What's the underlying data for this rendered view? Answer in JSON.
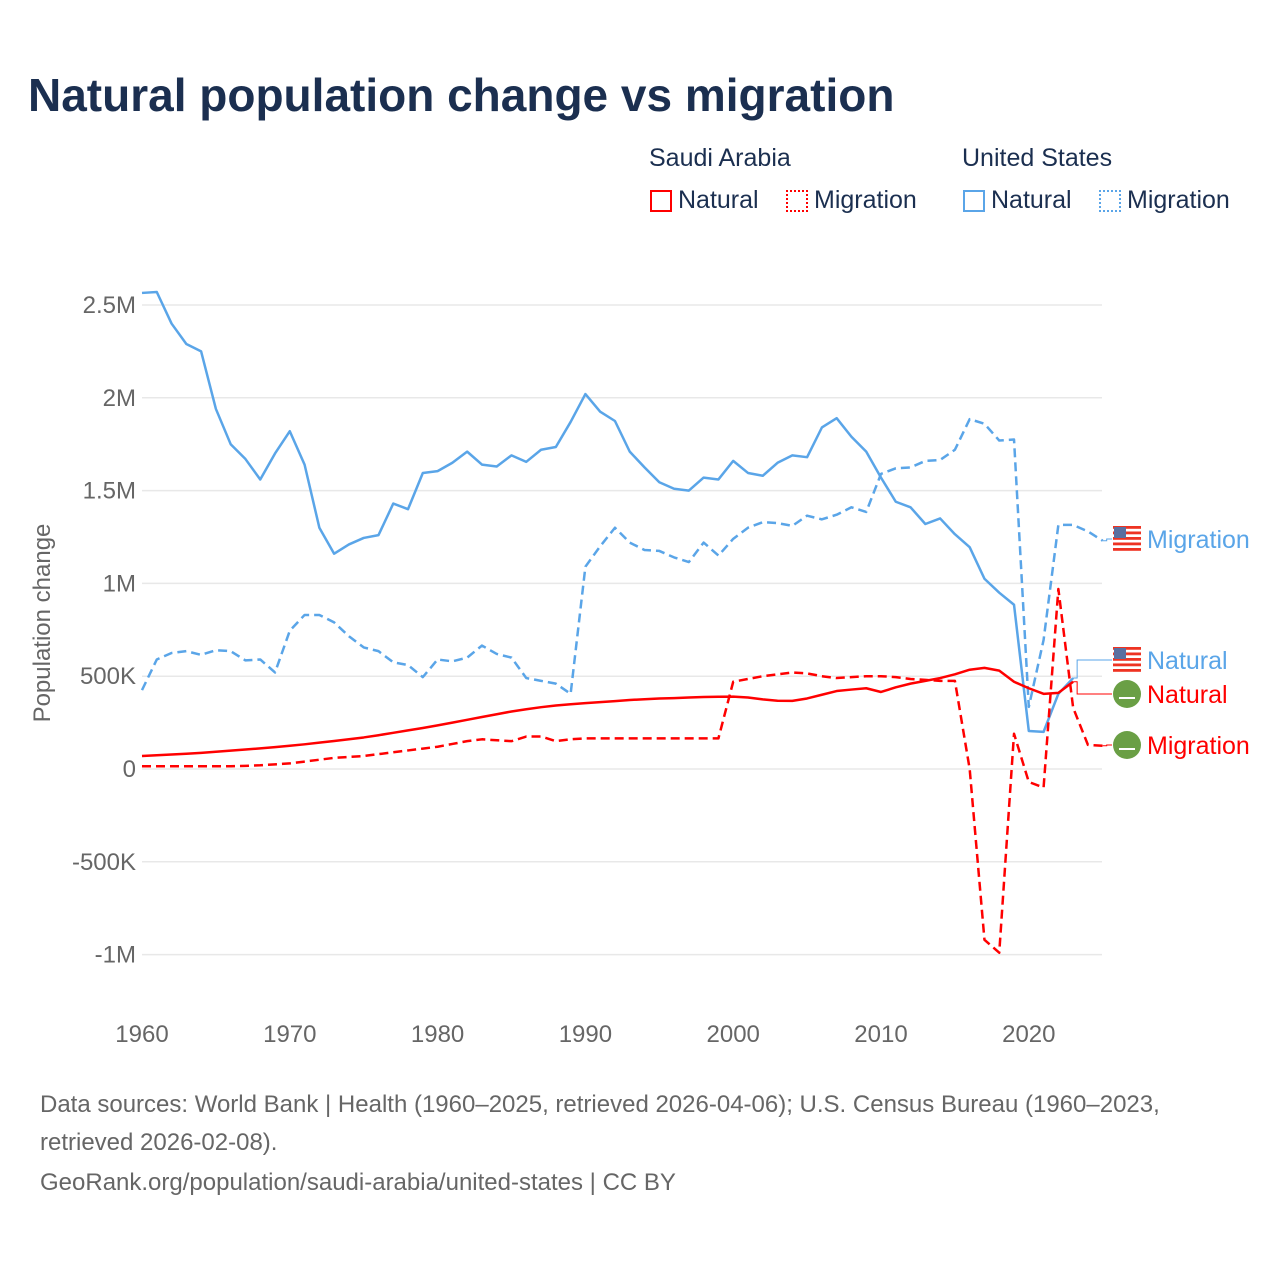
{
  "title": "Natural population change vs migration",
  "legend": {
    "groups": [
      {
        "name": "Saudi Arabia",
        "items": [
          "Natural",
          "Migration"
        ],
        "color": "#ff0000"
      },
      {
        "name": "United States",
        "items": [
          "Natural",
          "Migration"
        ],
        "color": "#5aa5e8"
      }
    ]
  },
  "footer": {
    "sources": "Data sources: World Bank | Health (1960–2025, retrieved 2026-04-06); U.S. Census Bureau (1960–2023,",
    "sources2": "retrieved 2026-02-08).",
    "link": "GeoRank.org/population/saudi-arabia/united-states | CC BY"
  },
  "chart_data": {
    "type": "line",
    "title": "Natural population change vs migration",
    "xlabel": "",
    "ylabel": "Population change",
    "xlim": [
      1960,
      2025
    ],
    "ylim": [
      -1150000,
      2650000
    ],
    "xticks": [
      1960,
      1970,
      1980,
      1990,
      2000,
      2010,
      2020
    ],
    "xtick_labels": [
      "1960",
      "1970",
      "1980",
      "1990",
      "2000",
      "2010",
      "2020"
    ],
    "yticks": [
      -1000000,
      -500000,
      0,
      500000,
      1000000,
      1500000,
      2000000,
      2500000
    ],
    "ytick_labels": [
      "-1M",
      "-500K",
      "0",
      "500K",
      "1M",
      "1.5M",
      "2M",
      "2.5M"
    ],
    "grid": true,
    "legend_position": "top-right",
    "series": [
      {
        "name": "United States Natural",
        "country": "United States",
        "kind": "Natural",
        "color": "#5aa5e8",
        "dash": false,
        "start": 1960,
        "values": [
          2565000,
          2570000,
          2400000,
          2290000,
          2250000,
          1940000,
          1750000,
          1670000,
          1560000,
          1700000,
          1820000,
          1640000,
          1300000,
          1160000,
          1210000,
          1245000,
          1260000,
          1430000,
          1400000,
          1595000,
          1605000,
          1650000,
          1710000,
          1640000,
          1630000,
          1690000,
          1655000,
          1720000,
          1735000,
          1870000,
          2020000,
          1925000,
          1875000,
          1710000,
          1625000,
          1545000,
          1510000,
          1500000,
          1570000,
          1560000,
          1660000,
          1595000,
          1580000,
          1650000,
          1690000,
          1680000,
          1840000,
          1890000,
          1790000,
          1710000,
          1570000,
          1440000,
          1410000,
          1320000,
          1350000,
          1265000,
          1195000,
          1025000,
          950000,
          885000,
          205000,
          200000,
          405000,
          490000
        ],
        "end_label": "Natural"
      },
      {
        "name": "United States Migration",
        "country": "United States",
        "kind": "Migration",
        "color": "#5aa5e8",
        "dash": true,
        "start": 1960,
        "values": [
          425000,
          590000,
          625000,
          635000,
          615000,
          640000,
          635000,
          585000,
          590000,
          520000,
          745000,
          830000,
          830000,
          790000,
          715000,
          655000,
          635000,
          575000,
          560000,
          495000,
          590000,
          580000,
          600000,
          665000,
          620000,
          600000,
          490000,
          475000,
          460000,
          405000,
          1090000,
          1200000,
          1300000,
          1220000,
          1180000,
          1175000,
          1140000,
          1115000,
          1220000,
          1150000,
          1240000,
          1300000,
          1330000,
          1325000,
          1310000,
          1365000,
          1345000,
          1370000,
          1410000,
          1385000,
          1590000,
          1620000,
          1625000,
          1660000,
          1665000,
          1720000,
          1885000,
          1860000,
          1770000,
          1775000,
          335000,
          695000,
          1315000,
          1315000,
          1280000,
          1230000
        ],
        "end_label": "Migration"
      },
      {
        "name": "Saudi Arabia Natural",
        "country": "Saudi Arabia",
        "kind": "Natural",
        "color": "#ff0000",
        "dash": false,
        "start": 1960,
        "values": [
          70000,
          74000,
          78000,
          82000,
          87000,
          93000,
          99000,
          105000,
          111000,
          118000,
          125000,
          133000,
          142000,
          151000,
          160000,
          170000,
          182000,
          195000,
          208000,
          221000,
          235000,
          250000,
          265000,
          280000,
          295000,
          310000,
          322000,
          333000,
          342000,
          349000,
          355000,
          360000,
          366000,
          372000,
          376000,
          380000,
          382000,
          385000,
          388000,
          389000,
          390000,
          385000,
          375000,
          368000,
          367000,
          380000,
          400000,
          420000,
          428000,
          435000,
          415000,
          440000,
          460000,
          475000,
          490000,
          510000,
          535000,
          545000,
          530000,
          470000,
          435000,
          405000,
          410000,
          470000
        ],
        "end_label": "Natural"
      },
      {
        "name": "Saudi Arabia Migration",
        "country": "Saudi Arabia",
        "kind": "Migration",
        "color": "#ff0000",
        "dash": true,
        "start": 1960,
        "values": [
          15000,
          15000,
          15000,
          15000,
          15000,
          15000,
          15000,
          17000,
          20000,
          25000,
          30000,
          40000,
          50000,
          60000,
          65000,
          70000,
          80000,
          90000,
          100000,
          110000,
          120000,
          135000,
          150000,
          160000,
          155000,
          150000,
          175000,
          175000,
          150000,
          160000,
          165000,
          165000,
          165000,
          165000,
          165000,
          165000,
          165000,
          165000,
          165000,
          165000,
          470000,
          485000,
          500000,
          510000,
          520000,
          515000,
          500000,
          490000,
          495000,
          500000,
          500000,
          495000,
          485000,
          480000,
          475000,
          475000,
          0,
          -920000,
          -990000,
          190000,
          -70000,
          -100000,
          970000,
          330000,
          130000,
          125000
        ],
        "end_label": "Migration"
      }
    ]
  }
}
